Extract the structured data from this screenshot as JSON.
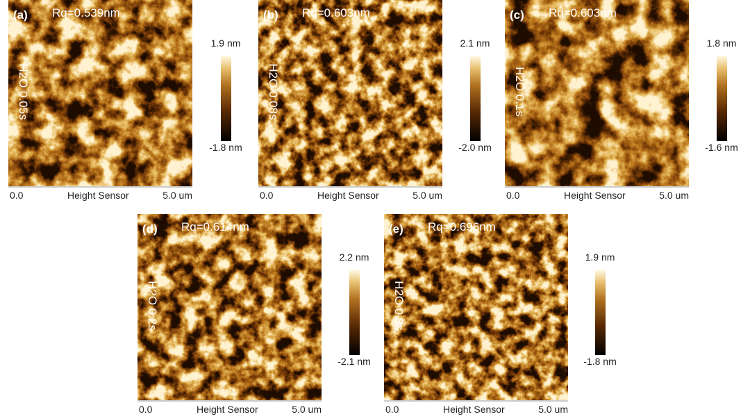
{
  "panels": [
    {
      "letter": "(a)",
      "rq": "Rq=0.539nm",
      "sample": "H2O 0.05s",
      "cbar_max": "1.9 nm",
      "cbar_min": "-1.8 nm",
      "x_start": "0.0",
      "x_label": "Height Sensor",
      "x_end": "5.0 um"
    },
    {
      "letter": "(b)",
      "rq": "Rq=0.603nm",
      "sample": "H2O 0.08s",
      "cbar_max": "2.1 nm",
      "cbar_min": "-2.0 nm",
      "x_start": "0.0",
      "x_label": "Height Sensor",
      "x_end": "5.0 um"
    },
    {
      "letter": "(c)",
      "rq": "Rq=0.603nm",
      "sample": "H2O 0.1s",
      "cbar_max": "1.8 nm",
      "cbar_min": "-1.6 nm",
      "x_start": "0.0",
      "x_label": "Height Sensor",
      "x_end": "5.0 um"
    },
    {
      "letter": "(d)",
      "rq": "Rq=0.614nm",
      "sample": "H2O 0.2s",
      "cbar_max": "2.2 nm",
      "cbar_min": "-2.1 nm",
      "x_start": "0.0",
      "x_label": "Height Sensor",
      "x_end": "5.0 um"
    },
    {
      "letter": "(e)",
      "rq": "Rq=0.696nm",
      "sample": "H2O 0.3s",
      "cbar_max": "1.9 nm",
      "cbar_min": "-1.8 nm",
      "x_start": "0.0",
      "x_label": "Height Sensor",
      "x_end": "5.0 um"
    }
  ]
}
